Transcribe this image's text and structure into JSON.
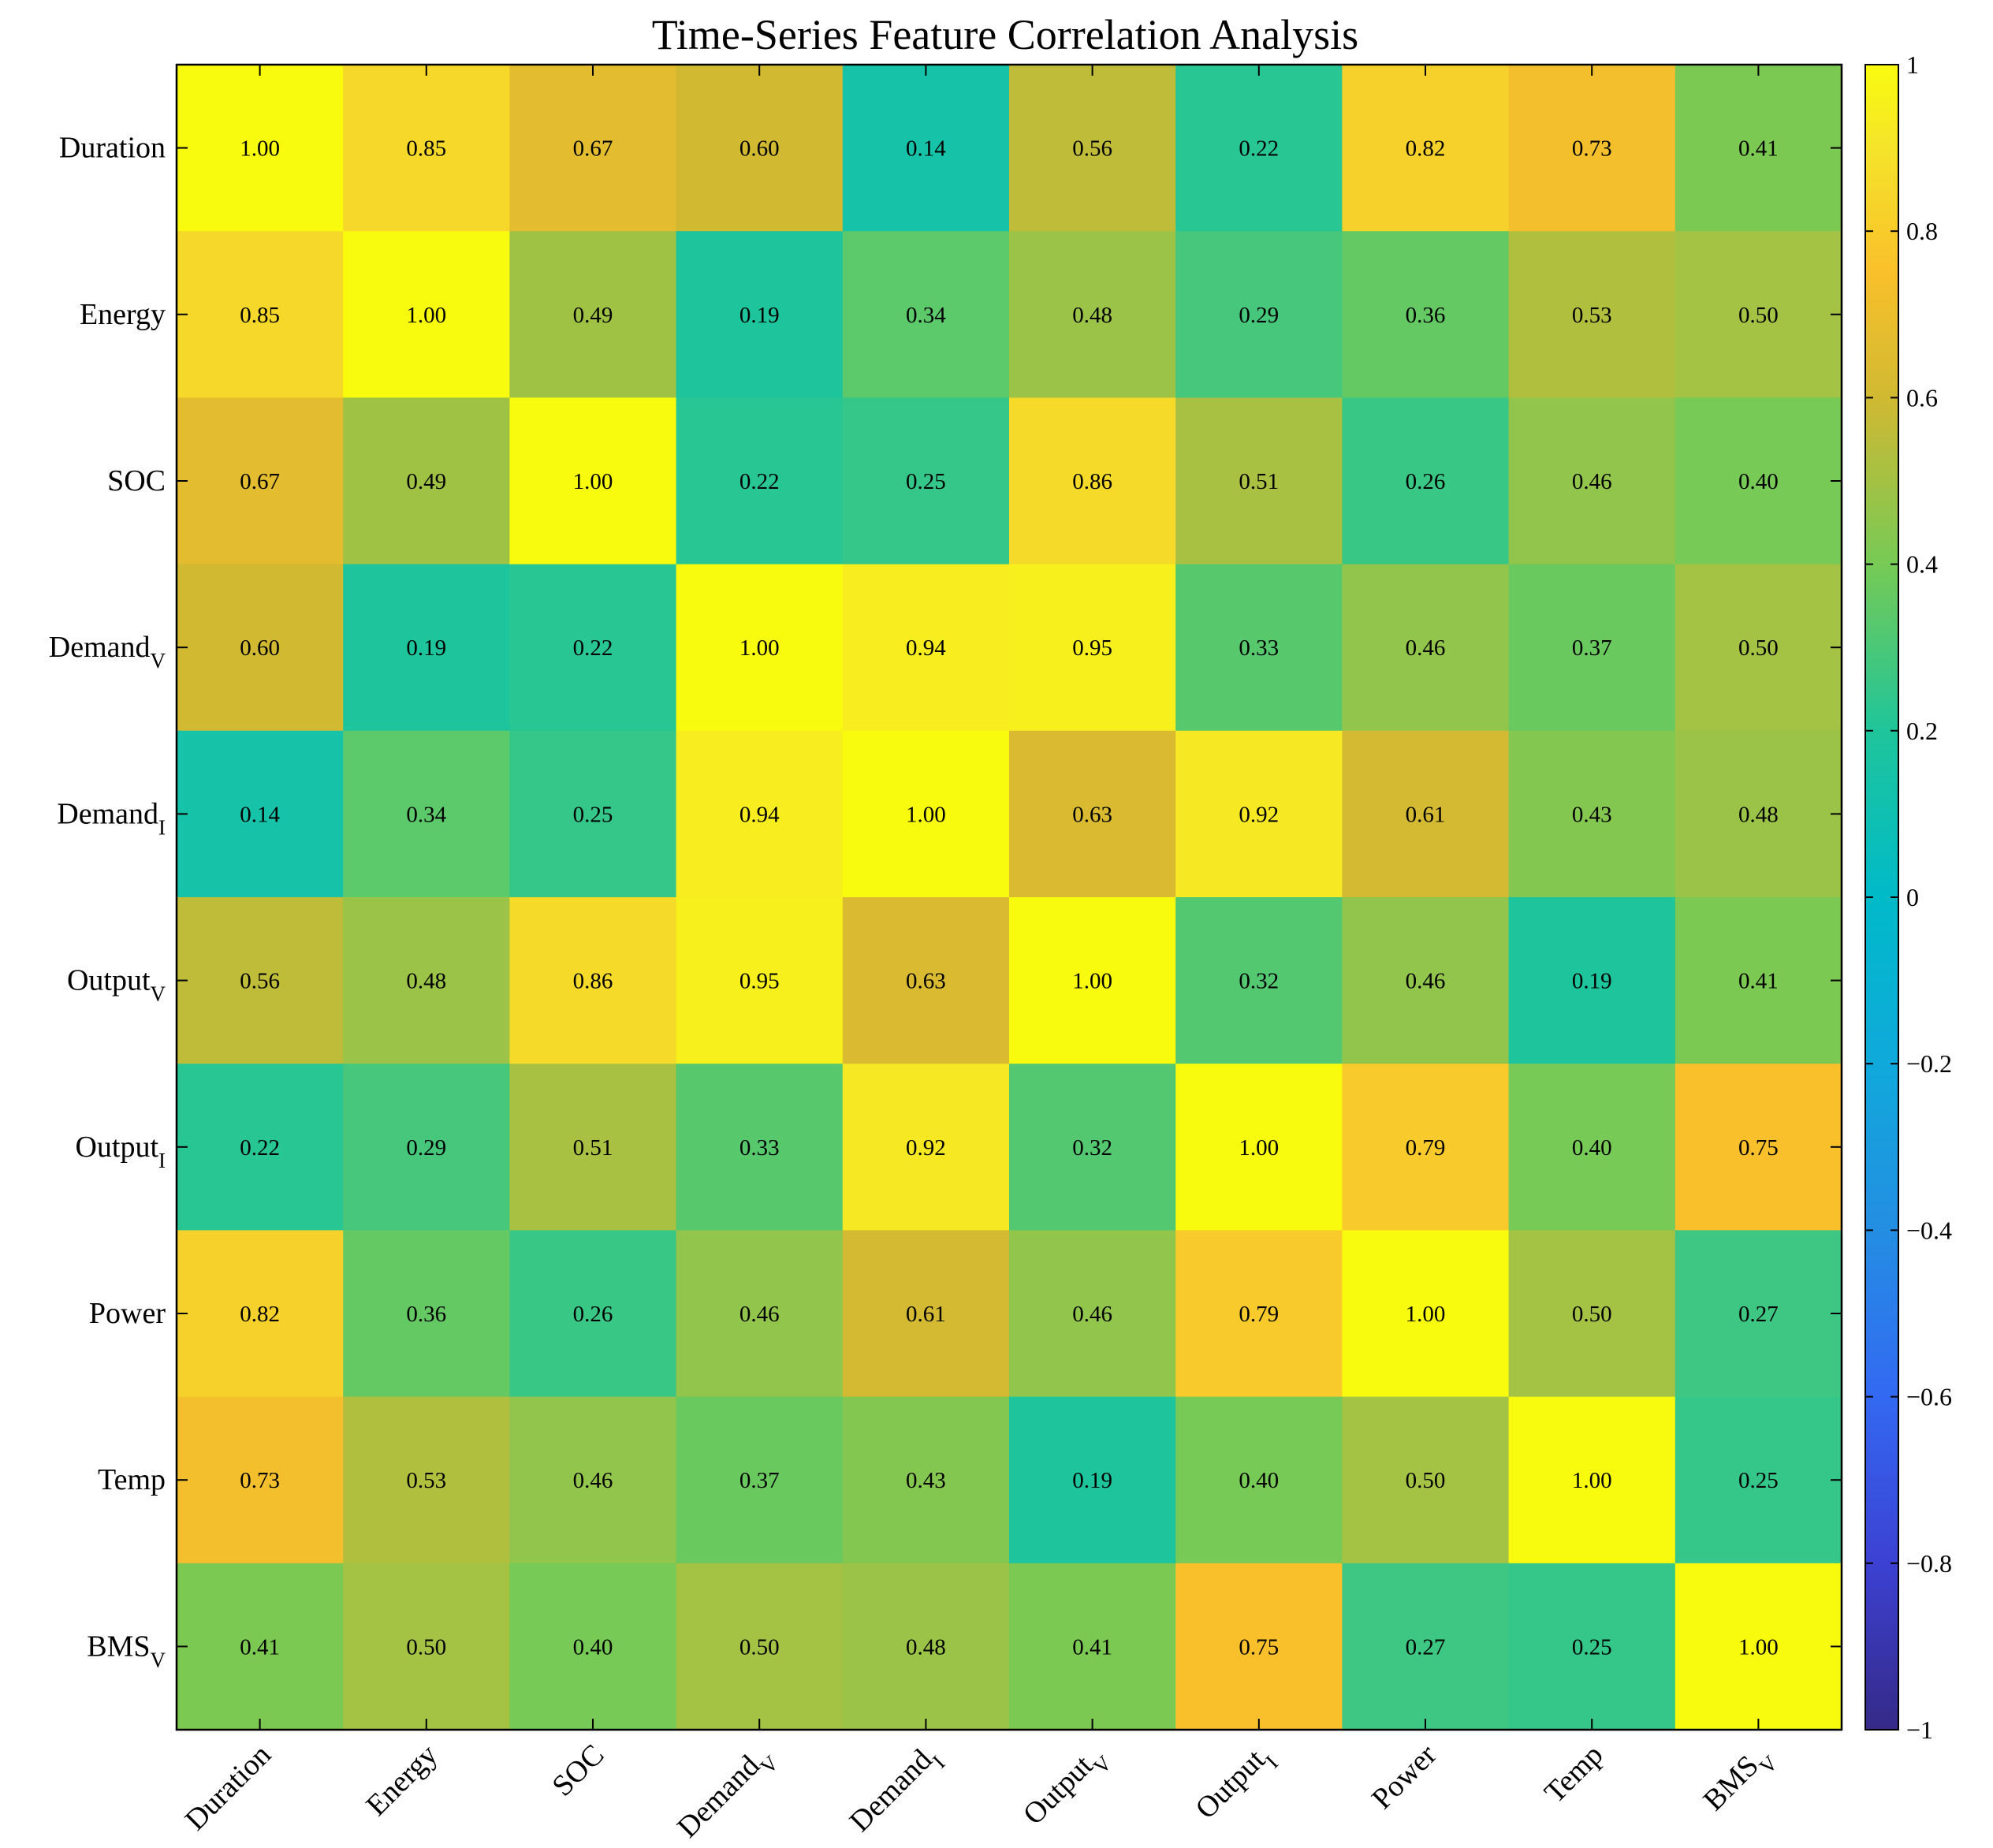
{
  "chart_data": {
    "type": "heatmap",
    "title": "Time-Series Feature Correlation Analysis",
    "row_labels": [
      {
        "main": "Duration",
        "sub": ""
      },
      {
        "main": "Energy",
        "sub": ""
      },
      {
        "main": "SOC",
        "sub": ""
      },
      {
        "main": "Demand",
        "sub": "V"
      },
      {
        "main": "Demand",
        "sub": "I"
      },
      {
        "main": "Output",
        "sub": "V"
      },
      {
        "main": "Output",
        "sub": "I"
      },
      {
        "main": "Power",
        "sub": ""
      },
      {
        "main": "Temp",
        "sub": ""
      },
      {
        "main": "BMS",
        "sub": "V"
      }
    ],
    "col_labels": [
      {
        "main": "Duration",
        "sub": ""
      },
      {
        "main": "Energy",
        "sub": ""
      },
      {
        "main": "SOC",
        "sub": ""
      },
      {
        "main": "Demand",
        "sub": "V"
      },
      {
        "main": "Demand",
        "sub": "I"
      },
      {
        "main": "Output",
        "sub": "V"
      },
      {
        "main": "Output",
        "sub": "I"
      },
      {
        "main": "Power",
        "sub": ""
      },
      {
        "main": "Temp",
        "sub": ""
      },
      {
        "main": "BMS",
        "sub": "V"
      }
    ],
    "matrix": [
      [
        1.0,
        0.85,
        0.67,
        0.6,
        0.14,
        0.56,
        0.22,
        0.82,
        0.73,
        0.41
      ],
      [
        0.85,
        1.0,
        0.49,
        0.19,
        0.34,
        0.48,
        0.29,
        0.36,
        0.53,
        0.5
      ],
      [
        0.67,
        0.49,
        1.0,
        0.22,
        0.25,
        0.86,
        0.51,
        0.26,
        0.46,
        0.4
      ],
      [
        0.6,
        0.19,
        0.22,
        1.0,
        0.94,
        0.95,
        0.33,
        0.46,
        0.37,
        0.5
      ],
      [
        0.14,
        0.34,
        0.25,
        0.94,
        1.0,
        0.63,
        0.92,
        0.61,
        0.43,
        0.48
      ],
      [
        0.56,
        0.48,
        0.86,
        0.95,
        0.63,
        1.0,
        0.32,
        0.46,
        0.19,
        0.41
      ],
      [
        0.22,
        0.29,
        0.51,
        0.33,
        0.92,
        0.32,
        1.0,
        0.79,
        0.4,
        0.75
      ],
      [
        0.82,
        0.36,
        0.26,
        0.46,
        0.61,
        0.46,
        0.79,
        1.0,
        0.5,
        0.27
      ],
      [
        0.73,
        0.53,
        0.46,
        0.37,
        0.43,
        0.19,
        0.4,
        0.5,
        1.0,
        0.25
      ],
      [
        0.41,
        0.5,
        0.4,
        0.5,
        0.48,
        0.41,
        0.75,
        0.27,
        0.25,
        1.0
      ]
    ],
    "value_format": "2 decimals",
    "colorbar": {
      "range": [
        -1,
        1
      ],
      "ticks": [
        -1,
        -0.8,
        -0.6,
        -0.4,
        -0.2,
        0,
        0.2,
        0.4,
        0.6,
        0.8,
        1
      ],
      "tick_labels": [
        "−1",
        "−0.8",
        "−0.6",
        "−0.4",
        "−0.2",
        "0",
        "0.2",
        "0.4",
        "0.6",
        "0.8",
        "1"
      ],
      "colormap": "parula",
      "colormap_stops": [
        {
          "v": -1.0,
          "c": "#352A87"
        },
        {
          "v": -0.8,
          "c": "#3C41D2"
        },
        {
          "v": -0.6,
          "c": "#3369F2"
        },
        {
          "v": -0.4,
          "c": "#248EE2"
        },
        {
          "v": -0.2,
          "c": "#10A9DB"
        },
        {
          "v": 0.0,
          "c": "#00BAC8"
        },
        {
          "v": 0.2,
          "c": "#1FC59A"
        },
        {
          "v": 0.4,
          "c": "#76CA55"
        },
        {
          "v": 0.6,
          "c": "#D1B932"
        },
        {
          "v": 0.75,
          "c": "#F9C02B"
        },
        {
          "v": 0.9,
          "c": "#F5E42A"
        },
        {
          "v": 1.0,
          "c": "#F9FB0E"
        }
      ]
    }
  }
}
